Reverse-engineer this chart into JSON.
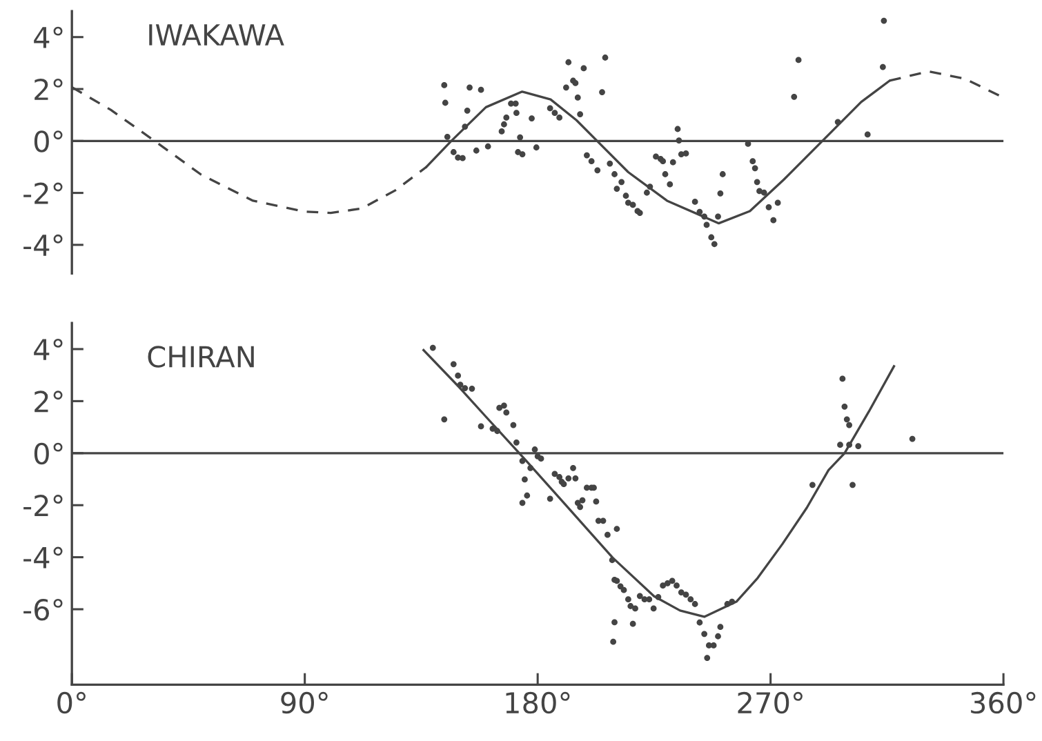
{
  "chart_data": [
    {
      "type": "scatter",
      "title": "IWAKAWA",
      "tick_labels": "y",
      "xlim": [
        0,
        360
      ],
      "ylim": [
        -5.1,
        5
      ],
      "grid": false,
      "legend": false,
      "yticks": [
        {
          "value": 4,
          "label": "4°"
        },
        {
          "value": 2,
          "label": "2°"
        },
        {
          "value": 0,
          "label": "0°"
        },
        {
          "value": -2,
          "label": "-2°"
        },
        {
          "value": -4,
          "label": "-4°"
        }
      ],
      "ref_lines": [
        {
          "axis": "y",
          "value": 0,
          "label": null,
          "color": "#444444",
          "line_style": "solid"
        }
      ],
      "series": [
        {
          "color": "#444444",
          "marker": "circle",
          "x": [
            143.9,
            144.3,
            145.1,
            147.5,
            149.2,
            151.0,
            153.7,
            152.8,
            151.9,
            156.3,
            158.1,
            160.8,
            166.1,
            167.0,
            167.9,
            169.7,
            171.5,
            171.8,
            173.2,
            174.1,
            172.4,
            177.7,
            179.5,
            184.8,
            186.6,
            188.4,
            191.0,
            191.9,
            193.7,
            194.6,
            195.5,
            196.4,
            197.8,
            199.0,
            200.8,
            203.1,
            204.9,
            206.1,
            207.9,
            209.7,
            210.6,
            212.4,
            214.1,
            215.0,
            216.8,
            218.6,
            219.5,
            222.2,
            223.4,
            225.7,
            227.5,
            228.4,
            229.3,
            231.1,
            232.3,
            234.1,
            234.6,
            235.5,
            237.3,
            240.8,
            242.6,
            244.4,
            245.3,
            247.1,
            248.3,
            249.7,
            250.6,
            251.5,
            261.3,
            263.1,
            264.0,
            264.8,
            265.7,
            267.5,
            269.3,
            271.1,
            272.8,
            279.1,
            280.8,
            296.0,
            307.5,
            313.4,
            313.8
          ],
          "values": [
            2.15,
            1.47,
            0.16,
            -0.43,
            -0.64,
            -0.66,
            2.06,
            1.17,
            0.55,
            -0.37,
            1.97,
            -0.21,
            0.37,
            0.64,
            0.9,
            1.44,
            1.44,
            1.08,
            0.14,
            -0.51,
            -0.43,
            0.87,
            -0.25,
            1.26,
            1.08,
            0.9,
            2.06,
            3.03,
            2.32,
            2.23,
            1.67,
            1.03,
            2.8,
            -0.55,
            -0.78,
            -1.13,
            1.88,
            3.21,
            -0.87,
            -1.28,
            -1.84,
            -1.58,
            -2.11,
            -2.38,
            -2.46,
            -2.7,
            -2.77,
            -1.99,
            -1.76,
            -0.6,
            -0.69,
            -0.78,
            -1.28,
            -1.67,
            -0.82,
            0.46,
            0.02,
            -0.51,
            -0.48,
            -2.34,
            -2.73,
            -2.91,
            -3.23,
            -3.71,
            -3.97,
            -2.91,
            -2.02,
            -1.28,
            -0.11,
            -0.78,
            -1.05,
            -1.58,
            -1.93,
            -1.99,
            -2.55,
            -3.05,
            -2.38,
            1.7,
            3.12,
            0.73,
            0.25,
            2.85,
            4.63
          ]
        },
        {
          "type": "line",
          "color": "#444444",
          "line_style": "dashed",
          "x": [
            0,
            15,
            32,
            50,
            70,
            90,
            100,
            112,
            125,
            137
          ],
          "values": [
            2.07,
            1.2,
            0,
            -1.3,
            -2.3,
            -2.72,
            -2.77,
            -2.6,
            -1.9,
            -1.0
          ]
        },
        {
          "type": "line",
          "color": "#444444",
          "line_style": "solid",
          "x": [
            137,
            146.6,
            160,
            174,
            185,
            195,
            203,
            215,
            230,
            250,
            262,
            275,
            290,
            305,
            316
          ],
          "values": [
            -1.0,
            0,
            1.3,
            1.9,
            1.6,
            0.8,
            0,
            -1.2,
            -2.3,
            -3.17,
            -2.7,
            -1.5,
            0,
            1.5,
            2.32
          ]
        },
        {
          "type": "line",
          "color": "#444444",
          "line_style": "dashed",
          "x": [
            316,
            331,
            345,
            360
          ],
          "values": [
            2.32,
            2.68,
            2.4,
            1.67
          ]
        }
      ]
    },
    {
      "type": "scatter",
      "title": "CHIRAN",
      "xlim": [
        0,
        360
      ],
      "ylim": [
        -8.9,
        5
      ],
      "grid": false,
      "legend": false,
      "xticks": [
        {
          "value": 0,
          "label": "0°"
        },
        {
          "value": 90,
          "label": "90°"
        },
        {
          "value": 180,
          "label": "180°"
        },
        {
          "value": 270,
          "label": "270°"
        },
        {
          "value": 360,
          "label": "360°"
        }
      ],
      "yticks": [
        {
          "value": 4,
          "label": "4°"
        },
        {
          "value": 2,
          "label": "2°"
        },
        {
          "value": 0,
          "label": "0°"
        },
        {
          "value": -2,
          "label": "-2°"
        },
        {
          "value": -4,
          "label": "-4°"
        },
        {
          "value": -6,
          "label": "-6°"
        }
      ],
      "ref_lines": [
        {
          "axis": "y",
          "value": 0,
          "label": null,
          "color": "#444444",
          "line_style": "solid"
        }
      ],
      "series": [
        {
          "color": "#444444",
          "marker": "circle",
          "x": [
            139.5,
            143.9,
            147.5,
            149.2,
            150.1,
            151.9,
            154.6,
            158.1,
            162.6,
            164.4,
            165.2,
            167.0,
            167.9,
            170.6,
            171.8,
            174.1,
            175.0,
            174.1,
            175.9,
            178.9,
            180.0,
            181.3,
            177.2,
            184.8,
            186.6,
            188.4,
            189.3,
            190.1,
            191.9,
            193.7,
            194.6,
            195.5,
            196.4,
            197.3,
            199.0,
            200.8,
            201.7,
            202.6,
            203.5,
            205.3,
            207.0,
            210.6,
            208.8,
            209.7,
            210.6,
            212.0,
            213.3,
            215.0,
            215.9,
            217.7,
            219.5,
            221.3,
            223.1,
            224.8,
            226.6,
            228.4,
            230.2,
            232.0,
            233.7,
            235.5,
            237.3,
            239.1,
            240.8,
            242.6,
            244.4,
            246.2,
            248.0,
            249.7,
            250.6,
            209.7,
            216.8,
            209.2,
            245.5,
            253.3,
            255.1,
            286.2,
            297.8,
            298.6,
            299.5,
            300.4,
            296.9,
            300.4,
            303.9,
            301.7,
            324.8
          ],
          "values": [
            4.05,
            1.3,
            3.42,
            2.98,
            2.63,
            2.5,
            2.48,
            1.03,
            0.94,
            0.85,
            1.74,
            1.83,
            1.56,
            1.08,
            0.41,
            -0.3,
            -1.01,
            -1.91,
            -1.63,
            0.14,
            -0.12,
            -0.21,
            -0.57,
            -1.75,
            -0.8,
            -0.92,
            -1.1,
            -1.19,
            -0.97,
            -0.57,
            -0.97,
            -1.91,
            -2.07,
            -1.81,
            -1.33,
            -1.33,
            -1.33,
            -1.86,
            -2.6,
            -2.6,
            -3.14,
            -2.91,
            -4.11,
            -4.87,
            -4.91,
            -5.12,
            -5.26,
            -5.62,
            -5.88,
            -5.97,
            -5.49,
            -5.62,
            -5.62,
            -5.97,
            -5.53,
            -5.09,
            -5.0,
            -4.91,
            -5.09,
            -5.35,
            -5.44,
            -5.62,
            -5.8,
            -6.51,
            -6.95,
            -7.39,
            -7.39,
            -7.04,
            -6.68,
            -6.5,
            -6.56,
            -7.25,
            -7.87,
            -5.8,
            -5.71,
            -1.22,
            2.86,
            1.79,
            1.3,
            1.08,
            0.32,
            0.32,
            0.27,
            -1.22,
            0.55
          ]
        },
        {
          "type": "line",
          "color": "#444444",
          "line_style": "solid",
          "x": [
            135.9,
            150,
            160,
            172.9,
            190,
            209,
            225,
            235,
            244.4,
            256.8,
            265,
            274.6,
            284,
            292.4,
            298.6,
            308,
            317.7
          ],
          "values": [
            3.96,
            2.5,
            1.4,
            0,
            -1.9,
            -4.02,
            -5.5,
            -6.05,
            -6.29,
            -5.71,
            -4.8,
            -3.49,
            -2.1,
            -0.65,
            0,
            1.6,
            3.34
          ]
        }
      ]
    }
  ]
}
